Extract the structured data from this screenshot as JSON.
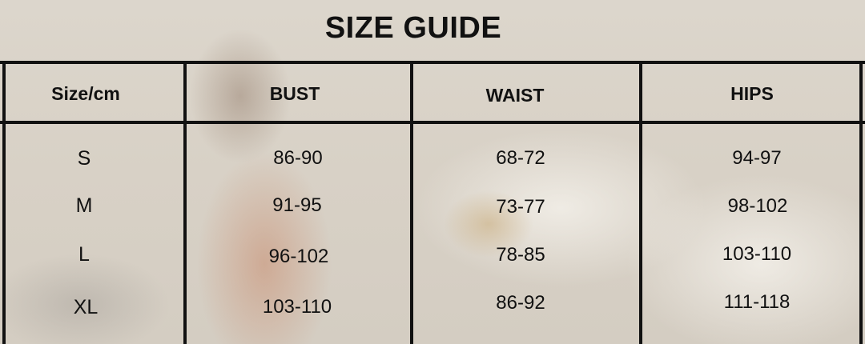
{
  "title": "SIZE GUIDE",
  "headers": [
    "Size/cm",
    "BUST",
    "WAIST",
    "HIPS"
  ],
  "rows": [
    {
      "size": "S",
      "bust": "86-90",
      "waist": "68-72",
      "hips": "94-97"
    },
    {
      "size": "M",
      "bust": "91-95",
      "waist": "73-77",
      "hips": "98-102"
    },
    {
      "size": "L",
      "bust": "96-102",
      "waist": "78-85",
      "hips": "103-110"
    },
    {
      "size": "XL",
      "bust": "103-110",
      "waist": "86-92",
      "hips": "111-118"
    }
  ]
}
